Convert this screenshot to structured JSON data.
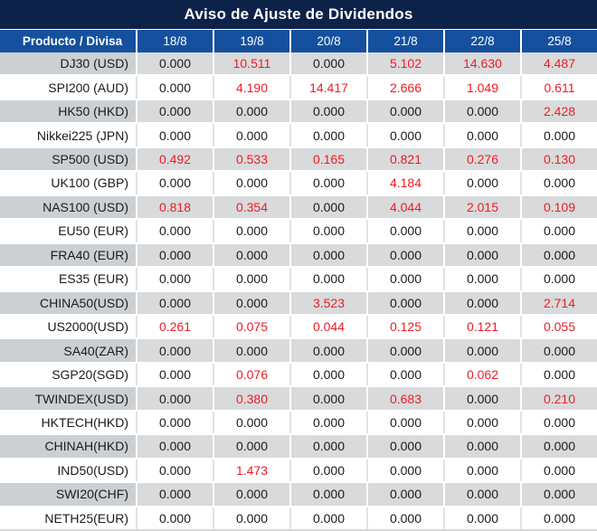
{
  "title": "Aviso de Ajuste de Dividendos",
  "colors": {
    "navy": "#0d2249",
    "header_blue": "#14509e",
    "gray_name": "#ccd0d3",
    "gray_data": "#d9dadc",
    "red": "#ed1c24",
    "ink": "#1a1a1a"
  },
  "table": {
    "product_header": "Producto / Divisa",
    "date_headers": [
      "18/8",
      "19/8",
      "20/8",
      "21/8",
      "22/8",
      "25/8"
    ],
    "rows": [
      {
        "product": "DJ30 (USD)",
        "values": [
          "0.000",
          "10.511",
          "0.000",
          "5.102",
          "14.630",
          "4.487"
        ]
      },
      {
        "product": "SPI200 (AUD)",
        "values": [
          "0.000",
          "4.190",
          "14.417",
          "2.666",
          "1.049",
          "0.611"
        ]
      },
      {
        "product": "HK50 (HKD)",
        "values": [
          "0.000",
          "0.000",
          "0.000",
          "0.000",
          "0.000",
          "2.428"
        ]
      },
      {
        "product": "Nikkei225 (JPN)",
        "values": [
          "0.000",
          "0.000",
          "0.000",
          "0.000",
          "0.000",
          "0.000"
        ]
      },
      {
        "product": "SP500 (USD)",
        "values": [
          "0.492",
          "0.533",
          "0.165",
          "0.821",
          "0.276",
          "0.130"
        ]
      },
      {
        "product": "UK100 (GBP)",
        "values": [
          "0.000",
          "0.000",
          "0.000",
          "4.184",
          "0.000",
          "0.000"
        ]
      },
      {
        "product": "NAS100 (USD)",
        "values": [
          "0.818",
          "0.354",
          "0.000",
          "4.044",
          "2.015",
          "0.109"
        ]
      },
      {
        "product": "EU50 (EUR)",
        "values": [
          "0.000",
          "0.000",
          "0.000",
          "0.000",
          "0.000",
          "0.000"
        ]
      },
      {
        "product": "FRA40 (EUR)",
        "values": [
          "0.000",
          "0.000",
          "0.000",
          "0.000",
          "0.000",
          "0.000"
        ]
      },
      {
        "product": "ES35 (EUR)",
        "values": [
          "0.000",
          "0.000",
          "0.000",
          "0.000",
          "0.000",
          "0.000"
        ]
      },
      {
        "product": "CHINA50(USD)",
        "values": [
          "0.000",
          "0.000",
          "3.523",
          "0.000",
          "0.000",
          "2.714"
        ]
      },
      {
        "product": "US2000(USD)",
        "values": [
          "0.261",
          "0.075",
          "0.044",
          "0.125",
          "0.121",
          "0.055"
        ]
      },
      {
        "product": "SA40(ZAR)",
        "values": [
          "0.000",
          "0.000",
          "0.000",
          "0.000",
          "0.000",
          "0.000"
        ]
      },
      {
        "product": "SGP20(SGD)",
        "values": [
          "0.000",
          "0.076",
          "0.000",
          "0.000",
          "0.062",
          "0.000"
        ]
      },
      {
        "product": "TWINDEX(USD)",
        "values": [
          "0.000",
          "0.380",
          "0.000",
          "0.683",
          "0.000",
          "0.210"
        ]
      },
      {
        "product": "HKTECH(HKD)",
        "values": [
          "0.000",
          "0.000",
          "0.000",
          "0.000",
          "0.000",
          "0.000"
        ]
      },
      {
        "product": "CHINAH(HKD)",
        "values": [
          "0.000",
          "0.000",
          "0.000",
          "0.000",
          "0.000",
          "0.000"
        ]
      },
      {
        "product": "IND50(USD)",
        "values": [
          "0.000",
          "1.473",
          "0.000",
          "0.000",
          "0.000",
          "0.000"
        ]
      },
      {
        "product": "SWI20(CHF)",
        "values": [
          "0.000",
          "0.000",
          "0.000",
          "0.000",
          "0.000",
          "0.000"
        ]
      },
      {
        "product": "NETH25(EUR)",
        "values": [
          "0.000",
          "0.000",
          "0.000",
          "0.000",
          "0.000",
          "0.000"
        ]
      }
    ]
  },
  "chart_data": {
    "type": "table",
    "title": "Aviso de Ajuste de Dividendos",
    "columns": [
      "Producto / Divisa",
      "18/8",
      "19/8",
      "20/8",
      "21/8",
      "22/8",
      "25/8"
    ],
    "note": "non-zero adjustment values are rendered in red"
  }
}
